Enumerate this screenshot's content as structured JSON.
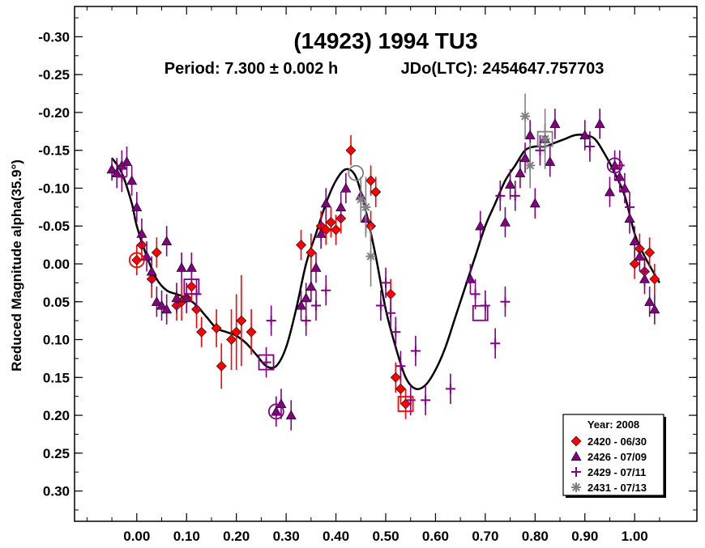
{
  "chart_data": {
    "type": "scatter",
    "title": "(14923) 1994 TU3",
    "subtitle_period": "Period: 7.300 ± 0.002 h",
    "subtitle_epoch": "JDo(LTC): 2454647.757703",
    "ylabel": "Reduced Magnitude alpha(35.9°)",
    "xlabel": "",
    "xlim": [
      -0.125,
      1.125
    ],
    "ylim": [
      0.34,
      -0.34
    ],
    "y_inverted": true,
    "x_ticks": [
      "0.00",
      "0.10",
      "0.20",
      "0.30",
      "0.40",
      "0.50",
      "0.60",
      "0.70",
      "0.80",
      "0.90",
      "1.00"
    ],
    "x_tick_values": [
      0,
      0.1,
      0.2,
      0.3,
      0.4,
      0.5,
      0.6,
      0.7,
      0.8,
      0.9,
      1.0
    ],
    "y_ticks": [
      "-0.30",
      "-0.25",
      "-0.20",
      "-0.15",
      "-0.10",
      "-0.05",
      "0.00",
      "0.05",
      "0.10",
      "0.15",
      "0.20",
      "0.25",
      "0.30"
    ],
    "y_tick_values": [
      -0.3,
      -0.25,
      -0.2,
      -0.15,
      -0.1,
      -0.05,
      0,
      0.05,
      0.1,
      0.15,
      0.2,
      0.25,
      0.3
    ],
    "grid": false,
    "legend": {
      "position": "bottom-right",
      "title": "Year: 2008",
      "entries": [
        {
          "label": "2420 - 06/30",
          "marker": "diamond",
          "color": "#ff0000"
        },
        {
          "label": "2426 - 07/09",
          "marker": "triangle",
          "color": "#800080"
        },
        {
          "label": "2429 - 07/11",
          "marker": "plus",
          "color": "#800080"
        },
        {
          "label": "2431 - 07/13",
          "marker": "asterisk",
          "color": "#808080"
        }
      ]
    },
    "fit_curve": {
      "color": "#000000",
      "x": [
        -0.05,
        -0.03,
        -0.01,
        0.0,
        0.02,
        0.04,
        0.06,
        0.08,
        0.1,
        0.12,
        0.14,
        0.16,
        0.18,
        0.2,
        0.22,
        0.24,
        0.26,
        0.28,
        0.3,
        0.32,
        0.34,
        0.36,
        0.38,
        0.4,
        0.42,
        0.44,
        0.46,
        0.48,
        0.5,
        0.52,
        0.54,
        0.56,
        0.58,
        0.6,
        0.62,
        0.64,
        0.66,
        0.68,
        0.7,
        0.72,
        0.74,
        0.76,
        0.78,
        0.8,
        0.82,
        0.84,
        0.86,
        0.88,
        0.9,
        0.92,
        0.94,
        0.96,
        0.98,
        1.0,
        1.02,
        1.05
      ],
      "y": [
        -0.14,
        -0.12,
        -0.08,
        -0.05,
        -0.01,
        0.02,
        0.035,
        0.04,
        0.045,
        0.055,
        0.07,
        0.085,
        0.09,
        0.095,
        0.105,
        0.12,
        0.135,
        0.135,
        0.11,
        0.06,
        0.0,
        -0.04,
        -0.08,
        -0.11,
        -0.125,
        -0.115,
        -0.07,
        -0.01,
        0.06,
        0.11,
        0.15,
        0.165,
        0.16,
        0.14,
        0.11,
        0.07,
        0.03,
        -0.01,
        -0.05,
        -0.08,
        -0.11,
        -0.13,
        -0.15,
        -0.155,
        -0.155,
        -0.16,
        -0.165,
        -0.17,
        -0.17,
        -0.165,
        -0.145,
        -0.12,
        -0.09,
        -0.04,
        -0.01,
        0.025
      ]
    },
    "series": [
      {
        "name": "2420 - 06/30",
        "marker": "diamond",
        "color": "#ff0000",
        "points": [
          [
            0.0,
            -0.005,
            0.02
          ],
          [
            0.01,
            -0.025,
            0.02
          ],
          [
            0.03,
            0.02,
            0.025
          ],
          [
            0.04,
            -0.015,
            0.02
          ],
          [
            0.08,
            0.055,
            0.02
          ],
          [
            0.09,
            0.05,
            0.025
          ],
          [
            0.1,
            0.045,
            0.02
          ],
          [
            0.11,
            0.03,
            0.02
          ],
          [
            0.12,
            0.06,
            0.025
          ],
          [
            0.13,
            0.09,
            0.02
          ],
          [
            0.16,
            0.085,
            0.025
          ],
          [
            0.17,
            0.135,
            0.03
          ],
          [
            0.19,
            0.1,
            0.04
          ],
          [
            0.2,
            0.09,
            0.05
          ],
          [
            0.21,
            0.075,
            0.06
          ],
          [
            0.23,
            0.09,
            0.03
          ],
          [
            0.33,
            -0.025,
            0.02
          ],
          [
            0.35,
            -0.015,
            0.025
          ],
          [
            0.37,
            -0.05,
            0.02
          ],
          [
            0.38,
            -0.045,
            0.02
          ],
          [
            0.39,
            -0.055,
            0.02
          ],
          [
            0.4,
            -0.045,
            0.02
          ],
          [
            0.41,
            -0.06,
            0.02
          ],
          [
            0.43,
            -0.15,
            0.02
          ],
          [
            0.47,
            -0.11,
            0.02
          ],
          [
            0.48,
            -0.095,
            0.02
          ],
          [
            0.47,
            -0.05,
            0.02
          ],
          [
            0.51,
            0.04,
            0.02
          ],
          [
            0.52,
            0.15,
            0.02
          ],
          [
            0.53,
            0.165,
            0.02
          ],
          [
            0.54,
            0.185,
            0.02
          ],
          [
            1.0,
            0.0,
            0.02
          ],
          [
            1.01,
            -0.02,
            0.02
          ],
          [
            1.02,
            0.01,
            0.02
          ],
          [
            1.03,
            -0.015,
            0.02
          ],
          [
            1.04,
            0.02,
            0.02
          ]
        ]
      },
      {
        "name": "2426 - 07/09",
        "marker": "triangle",
        "color": "#800080",
        "points": [
          [
            -0.05,
            -0.125,
            0.015
          ],
          [
            -0.04,
            -0.12,
            0.02
          ],
          [
            -0.03,
            -0.13,
            0.02
          ],
          [
            -0.02,
            -0.135,
            0.02
          ],
          [
            -0.01,
            -0.11,
            0.02
          ],
          [
            0.0,
            -0.075,
            0.02
          ],
          [
            0.01,
            -0.04,
            0.02
          ],
          [
            0.02,
            -0.01,
            0.02
          ],
          [
            0.03,
            0.01,
            0.02
          ],
          [
            0.04,
            0.05,
            0.02
          ],
          [
            0.05,
            0.055,
            0.02
          ],
          [
            0.06,
            0.06,
            0.02
          ],
          [
            0.06,
            -0.03,
            0.02
          ],
          [
            0.08,
            0.045,
            0.02
          ],
          [
            0.09,
            0.005,
            0.02
          ],
          [
            0.1,
            0.045,
            0.02
          ],
          [
            0.11,
            0.005,
            0.02
          ],
          [
            0.28,
            0.195,
            0.02
          ],
          [
            0.29,
            0.185,
            0.02
          ],
          [
            0.31,
            0.2,
            0.02
          ],
          [
            0.33,
            0.055,
            0.02
          ],
          [
            0.34,
            0.045,
            0.02
          ],
          [
            0.35,
            0.03,
            0.02
          ],
          [
            0.36,
            0.005,
            0.02
          ],
          [
            0.37,
            -0.04,
            0.02
          ],
          [
            0.38,
            -0.08,
            0.02
          ],
          [
            0.41,
            -0.075,
            0.02
          ],
          [
            0.42,
            -0.1,
            0.02
          ],
          [
            0.45,
            -0.09,
            0.02
          ],
          [
            0.46,
            -0.06,
            0.02
          ],
          [
            0.67,
            0.02,
            0.02
          ],
          [
            0.69,
            -0.05,
            0.02
          ],
          [
            0.74,
            -0.055,
            0.02
          ],
          [
            0.75,
            -0.105,
            0.02
          ],
          [
            0.77,
            -0.12,
            0.02
          ],
          [
            0.78,
            -0.14,
            0.02
          ],
          [
            0.79,
            -0.17,
            0.02
          ],
          [
            0.8,
            -0.08,
            0.02
          ],
          [
            0.82,
            -0.165,
            0.02
          ],
          [
            0.83,
            -0.135,
            0.02
          ],
          [
            0.84,
            -0.185,
            0.02
          ],
          [
            0.9,
            -0.17,
            0.02
          ],
          [
            0.93,
            -0.185,
            0.02
          ],
          [
            0.95,
            -0.095,
            0.02
          ],
          [
            0.96,
            -0.13,
            0.02
          ],
          [
            0.97,
            -0.115,
            0.02
          ],
          [
            0.98,
            -0.1,
            0.02
          ],
          [
            0.99,
            -0.06,
            0.02
          ],
          [
            1.0,
            -0.03,
            0.02
          ],
          [
            1.01,
            -0.01,
            0.02
          ],
          [
            1.02,
            0.02,
            0.02
          ],
          [
            1.03,
            0.05,
            0.02
          ],
          [
            1.04,
            0.06,
            0.02
          ]
        ]
      },
      {
        "name": "2429 - 07/11",
        "marker": "plus",
        "color": "#800080",
        "points": [
          [
            -0.03,
            -0.115,
            0.02
          ],
          [
            0.12,
            0.04,
            0.02
          ],
          [
            0.26,
            0.13,
            0.02
          ],
          [
            0.27,
            0.075,
            0.02
          ],
          [
            0.34,
            0.075,
            0.02
          ],
          [
            0.36,
            0.055,
            0.02
          ],
          [
            0.38,
            0.035,
            0.02
          ],
          [
            0.49,
            0.055,
            0.02
          ],
          [
            0.5,
            0.025,
            0.02
          ],
          [
            0.51,
            0.065,
            0.02
          ],
          [
            0.52,
            0.09,
            0.02
          ],
          [
            0.53,
            0.135,
            0.02
          ],
          [
            0.55,
            0.18,
            0.02
          ],
          [
            0.56,
            0.115,
            0.02
          ],
          [
            0.58,
            0.18,
            0.02
          ],
          [
            0.63,
            0.165,
            0.02
          ],
          [
            0.68,
            0.04,
            0.02
          ],
          [
            0.7,
            0.055,
            0.02
          ],
          [
            0.72,
            0.105,
            0.02
          ],
          [
            0.74,
            0.05,
            0.02
          ],
          [
            0.73,
            -0.09,
            0.02
          ],
          [
            0.76,
            -0.09,
            0.02
          ],
          [
            0.81,
            -0.15,
            0.02
          ],
          [
            0.91,
            -0.155,
            0.02
          ],
          [
            0.97,
            -0.13,
            0.02
          ],
          [
            0.99,
            -0.075,
            0.02
          ],
          [
            1.02,
            0.01,
            0.02
          ]
        ]
      },
      {
        "name": "2431 - 07/13",
        "marker": "asterisk",
        "color": "#808080",
        "points": [
          [
            0.45,
            -0.085,
            0.03
          ],
          [
            0.46,
            -0.075,
            0.04
          ],
          [
            0.47,
            -0.01,
            0.04
          ],
          [
            0.78,
            -0.195,
            0.03
          ],
          [
            0.79,
            -0.13,
            0.03
          ],
          [
            0.82,
            -0.165,
            0.04
          ]
        ]
      }
    ],
    "highlight_markers": [
      {
        "x": 0.0,
        "y": -0.005,
        "shape": "circle",
        "color": "#ff0000"
      },
      {
        "x": 0.11,
        "y": 0.03,
        "shape": "square",
        "color": "#800080"
      },
      {
        "x": 0.26,
        "y": 0.13,
        "shape": "square",
        "color": "#800080"
      },
      {
        "x": 0.28,
        "y": 0.195,
        "shape": "circle",
        "color": "#800080"
      },
      {
        "x": 0.44,
        "y": -0.12,
        "shape": "circle",
        "color": "#808080"
      },
      {
        "x": 0.54,
        "y": 0.185,
        "shape": "square",
        "color": "#ff0000"
      },
      {
        "x": 0.69,
        "y": 0.065,
        "shape": "square",
        "color": "#800080"
      },
      {
        "x": 0.82,
        "y": -0.165,
        "shape": "square",
        "color": "#808080"
      },
      {
        "x": 0.96,
        "y": -0.13,
        "shape": "circle",
        "color": "#800080"
      }
    ]
  }
}
